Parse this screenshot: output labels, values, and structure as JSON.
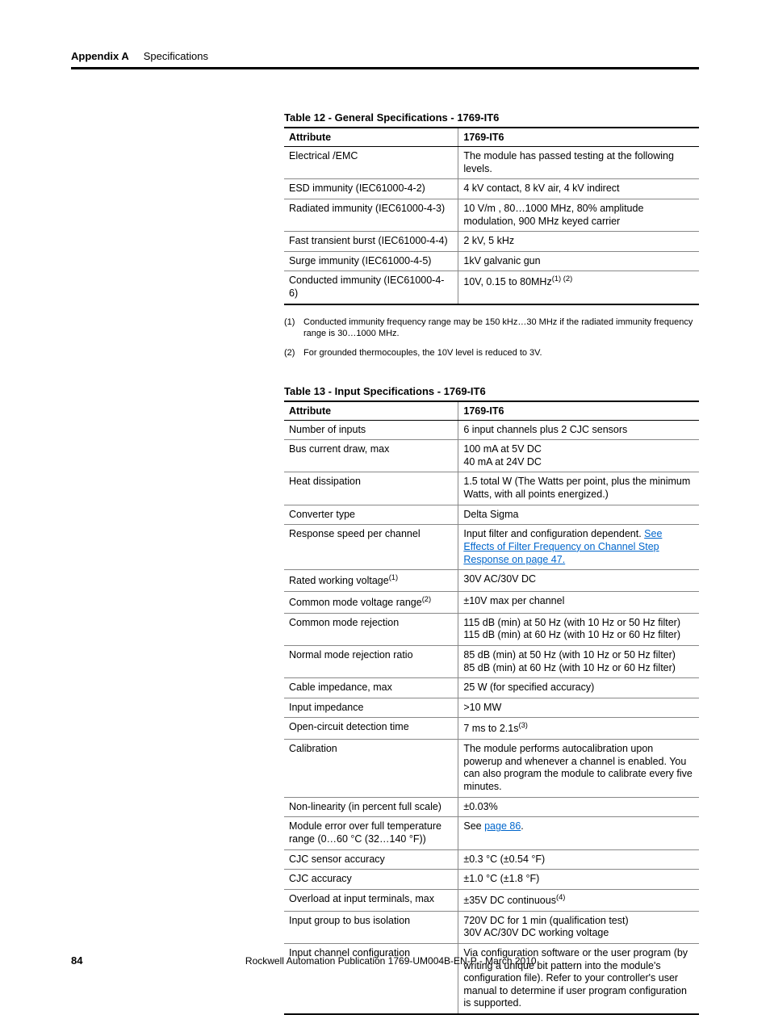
{
  "header": {
    "appendix": "Appendix A",
    "section": "Specifications"
  },
  "table12": {
    "title": "Table 12 - General Specifications - 1769-IT6",
    "head": {
      "c1": "Attribute",
      "c2": "1769-IT6"
    },
    "rows": [
      {
        "c1": "Electrical /EMC",
        "c2": "The module has passed testing at the following levels."
      },
      {
        "c1": "ESD immunity (IEC61000-4-2)",
        "c2": "4 kV contact, 8 kV air, 4 kV indirect"
      },
      {
        "c1": "Radiated immunity (IEC61000-4-3)",
        "c2": "10 V/m , 80…1000 MHz, 80% amplitude modulation, 900 MHz keyed carrier"
      },
      {
        "c1": "Fast transient burst (IEC61000-4-4)",
        "c2": "2 kV, 5 kHz"
      },
      {
        "c1": "Surge immunity (IEC61000-4-5)",
        "c2": "1kV galvanic gun"
      },
      {
        "c1": "Conducted immunity (IEC61000-4-6)",
        "c2_html": "10V, 0.15 to 80MHz<sup>(1) (2)</sup>"
      }
    ],
    "footnotes": [
      {
        "marker": "(1)",
        "text": "Conducted immunity frequency range may be 150 kHz…30 MHz if the radiated immunity frequency range is 30…1000 MHz."
      },
      {
        "marker": "(2)",
        "text": "For grounded thermocouples, the 10V level is reduced to 3V."
      }
    ]
  },
  "table13": {
    "title": "Table 13 - Input Specifications - 1769-IT6",
    "head": {
      "c1": "Attribute",
      "c2": "1769-IT6"
    },
    "rows": [
      {
        "c1": "Number of inputs",
        "c2": "6 input channels plus 2 CJC sensors"
      },
      {
        "c1": "Bus current draw, max",
        "c2": "100 mA at 5V DC\n40 mA at 24V DC"
      },
      {
        "c1": "Heat dissipation",
        "c2": "1.5 total W (The Watts per point, plus the minimum Watts, with all points energized.)"
      },
      {
        "c1": "Converter type",
        "c2": "Delta Sigma"
      },
      {
        "c1": "Response speed per channel",
        "c2_html": "Input filter and configuration dependent. <span class='link'>See Effects of Filter Frequency on Channel Step Response on page 47.</span>"
      },
      {
        "c1_html": "Rated working voltage<sup>(1)</sup>",
        "c2": "30V AC/30V DC"
      },
      {
        "c1_html": "Common mode voltage range<sup>(2)</sup>",
        "c2": "±10V max per channel"
      },
      {
        "c1": "Common mode rejection",
        "c2": "115 dB (min) at 50 Hz (with 10 Hz or 50 Hz filter)\n115 dB (min) at 60 Hz (with 10 Hz or 60 Hz filter)"
      },
      {
        "c1": "Normal mode rejection ratio",
        "c2": "85 dB (min) at 50 Hz (with 10 Hz or 50 Hz filter)\n85 dB (min) at 60 Hz (with 10 Hz or 60 Hz filter)"
      },
      {
        "c1": "Cable impedance, max",
        "c2": "25 W (for specified accuracy)"
      },
      {
        "c1": "Input impedance",
        "c2": ">10 MW"
      },
      {
        "c1": "Open-circuit detection time",
        "c2_html": "7 ms to 2.1s<sup>(3)</sup>"
      },
      {
        "c1": "Calibration",
        "c2": "The module performs autocalibration upon powerup and whenever a channel is enabled. You can also program the module to calibrate every five minutes."
      },
      {
        "c1": "Non-linearity (in percent full scale)",
        "c2": "±0.03%"
      },
      {
        "c1": "Module error over full temperature range (0…60 °C (32…140 °F))",
        "c2_html": "See <span class='link'>page 86</span>."
      },
      {
        "c1": "CJC sensor accuracy",
        "c2": "±0.3 °C (±0.54 °F)"
      },
      {
        "c1": "CJC accuracy",
        "c2": "±1.0 °C (±1.8 °F)"
      },
      {
        "c1": "Overload at input terminals, max",
        "c2_html": "±35V DC continuous<sup>(4)</sup>"
      },
      {
        "c1": "Input group to bus isolation",
        "c2": "720V DC for 1 min (qualification test)\n30V AC/30V DC working voltage"
      },
      {
        "c1": "Input channel configuration",
        "c2": "Via configuration software or the user program (by writing a unique bit pattern into the module's configuration file). Refer to your controller's user manual to determine if user program configuration is supported."
      }
    ]
  },
  "footer": {
    "page": "84",
    "text": "Rockwell Automation Publication 1769-UM004B-EN-P - March 2010"
  }
}
